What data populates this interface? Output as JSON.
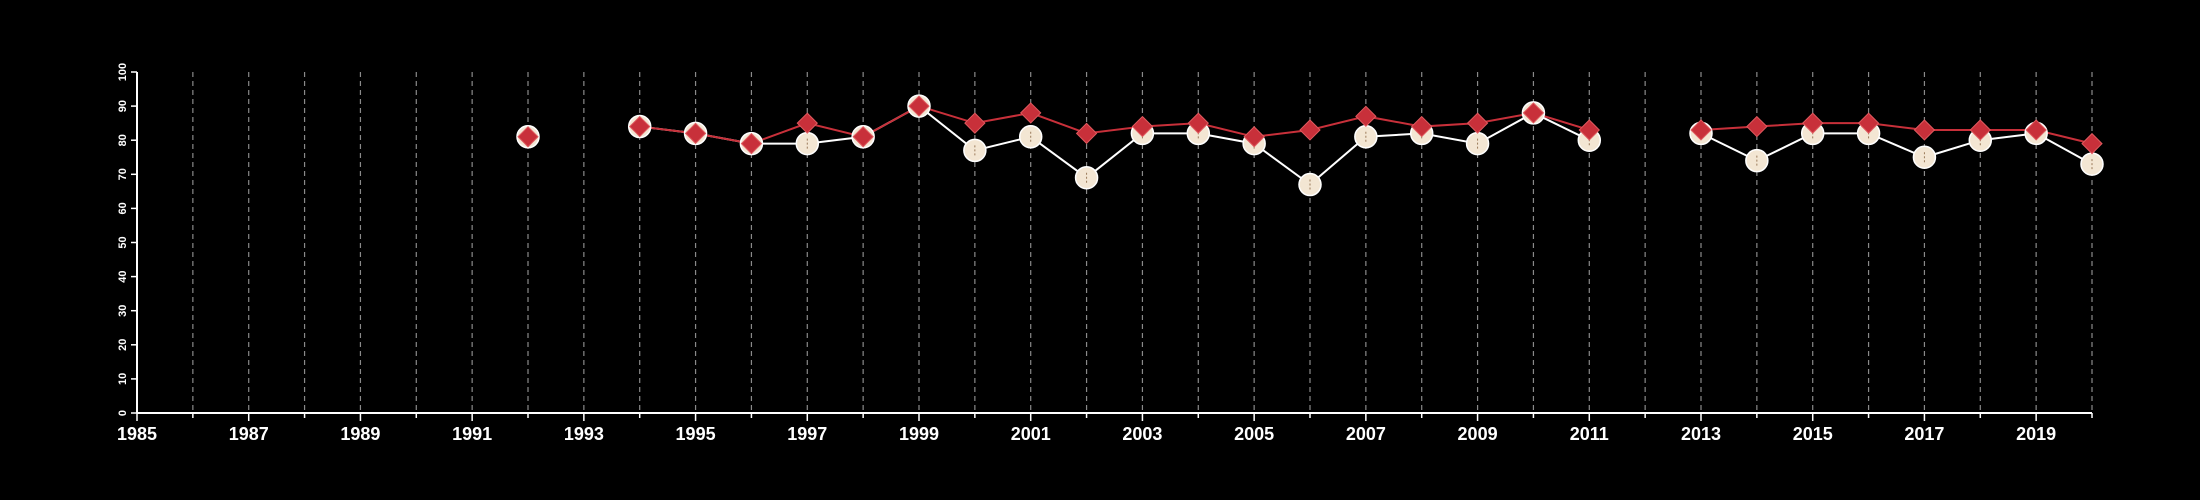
{
  "chart_data": {
    "type": "line",
    "title": "",
    "xlabel": "",
    "ylabel": "",
    "xlim": [
      1985,
      2020
    ],
    "ylim": [
      0,
      100
    ],
    "x_ticks": [
      1985,
      1987,
      1989,
      1991,
      1993,
      1995,
      1997,
      1999,
      2001,
      2003,
      2005,
      2007,
      2009,
      2011,
      2013,
      2015,
      2017,
      2019
    ],
    "y_ticks": [
      0,
      10,
      20,
      30,
      40,
      50,
      60,
      70,
      80,
      90,
      100
    ],
    "vertical_dashed_gridlines": true,
    "colors": {
      "background": "#000000",
      "axis": "#ffffff",
      "series_1": "#f3e6d3",
      "series_2": "#c8303a"
    },
    "series": [
      {
        "marker": "circle",
        "color": "#f3e6d3",
        "points": [
          [
            1992,
            81
          ],
          [
            1994,
            84
          ],
          [
            1995,
            82
          ],
          [
            1996,
            79
          ],
          [
            1997,
            79
          ],
          [
            1998,
            81
          ],
          [
            1999,
            90
          ],
          [
            2000,
            77
          ],
          [
            2001,
            81
          ],
          [
            2002,
            69
          ],
          [
            2003,
            82
          ],
          [
            2004,
            82
          ],
          [
            2005,
            79
          ],
          [
            2006,
            67
          ],
          [
            2007,
            81
          ],
          [
            2008,
            82
          ],
          [
            2009,
            79
          ],
          [
            2010,
            88
          ],
          [
            2011,
            80
          ],
          [
            2013,
            82
          ],
          [
            2014,
            74
          ],
          [
            2015,
            82
          ],
          [
            2016,
            82
          ],
          [
            2017,
            75
          ],
          [
            2018,
            80
          ],
          [
            2019,
            82
          ],
          [
            2020,
            73
          ]
        ]
      },
      {
        "marker": "diamond",
        "color": "#c8303a",
        "points": [
          [
            1992,
            81
          ],
          [
            1994,
            84
          ],
          [
            1995,
            82
          ],
          [
            1996,
            79
          ],
          [
            1997,
            85
          ],
          [
            1998,
            81
          ],
          [
            1999,
            90
          ],
          [
            2000,
            85
          ],
          [
            2001,
            88
          ],
          [
            2002,
            82
          ],
          [
            2003,
            84
          ],
          [
            2004,
            85
          ],
          [
            2005,
            81
          ],
          [
            2006,
            83
          ],
          [
            2007,
            87
          ],
          [
            2008,
            84
          ],
          [
            2009,
            85
          ],
          [
            2010,
            88
          ],
          [
            2011,
            83
          ],
          [
            2013,
            83
          ],
          [
            2014,
            84
          ],
          [
            2015,
            85
          ],
          [
            2016,
            85
          ],
          [
            2017,
            83
          ],
          [
            2018,
            83
          ],
          [
            2019,
            83
          ],
          [
            2020,
            79
          ]
        ]
      }
    ]
  }
}
